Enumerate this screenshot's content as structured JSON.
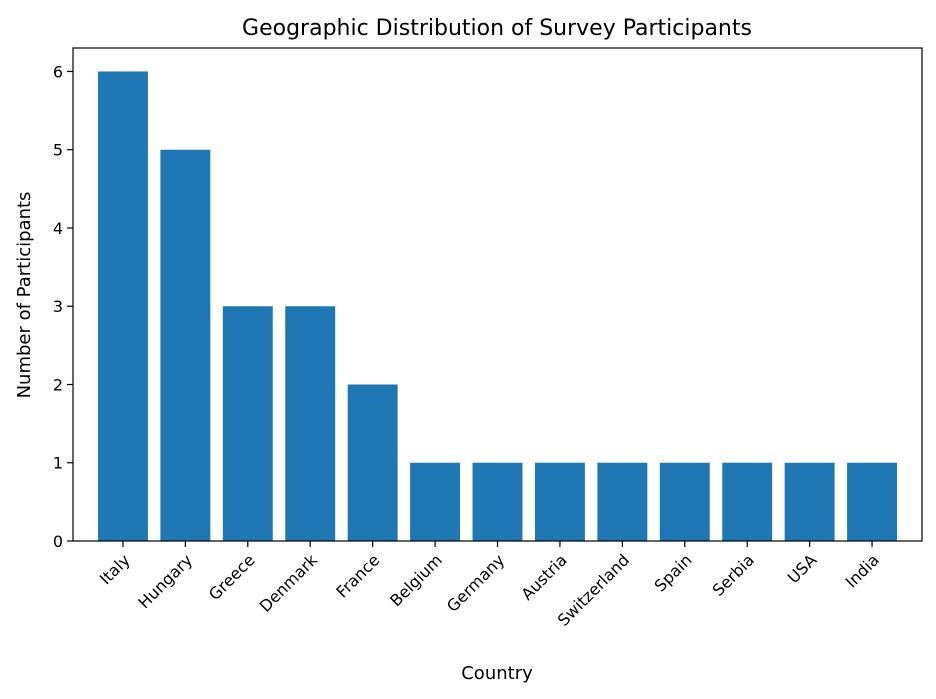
{
  "chart_data": {
    "type": "bar",
    "title": "Geographic Distribution of Survey Participants",
    "xlabel": "Country",
    "ylabel": "Number of Participants",
    "categories": [
      "Italy",
      "Hungary",
      "Greece",
      "Denmark",
      "France",
      "Belgium",
      "Germany",
      "Austria",
      "Switzerland",
      "Spain",
      "Serbia",
      "USA",
      "India"
    ],
    "values": [
      6,
      5,
      3,
      3,
      2,
      1,
      1,
      1,
      1,
      1,
      1,
      1,
      1
    ],
    "ylim": [
      0,
      6.3
    ],
    "yticks": [
      0,
      1,
      2,
      3,
      4,
      5,
      6
    ],
    "bar_color": "#1f77b4",
    "grid": false,
    "legend": false
  }
}
